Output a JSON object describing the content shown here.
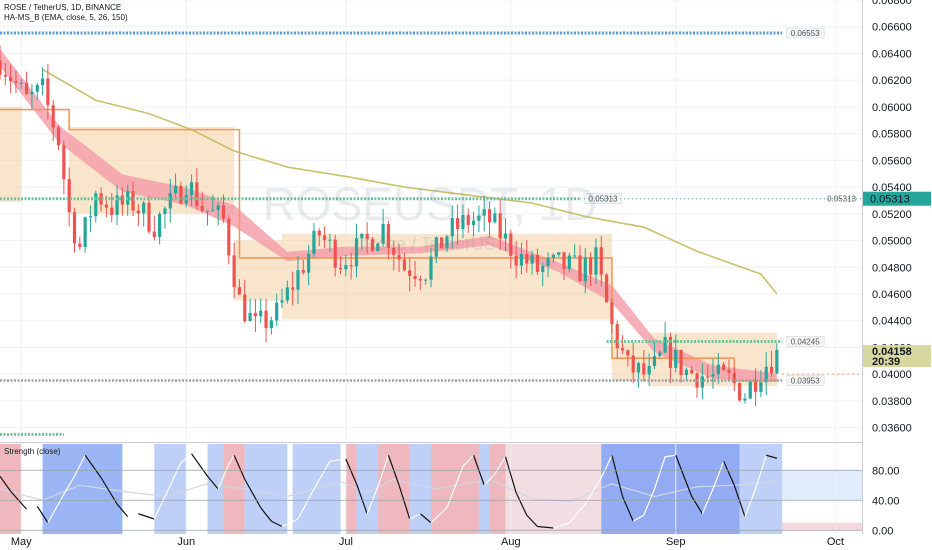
{
  "header": {
    "symbol_line": "ROSE / TetherUS, 1D, BINANCE",
    "indicator_line": "HA-MS_B (EMA, close, 5, 26, 150)",
    "osc_title": "Strength (close)"
  },
  "watermark": {
    "symbol": "ROSEUSDT, 1D",
    "sub": "Rose / TetherUS"
  },
  "chart_data": {
    "type": "candlestick",
    "price_axis": {
      "ylim": [
        0.035,
        0.068
      ],
      "ticks": [
        "0.06800",
        "0.06600",
        "0.06400",
        "0.06200",
        "0.06000",
        "0.05800",
        "0.05600",
        "0.05400",
        "0.05200",
        "0.05000",
        "0.04800",
        "0.04600",
        "0.04400",
        "0.04200",
        "0.04000",
        "0.03800",
        "0.03600"
      ]
    },
    "time_axis": {
      "start": "2022-04-27",
      "end": "2022-10-06",
      "labels": [
        {
          "text": "May",
          "date": "2022-05-01"
        },
        {
          "text": "Jun",
          "date": "2022-06-01"
        },
        {
          "text": "Jul",
          "date": "2022-07-01"
        },
        {
          "text": "Aug",
          "date": "2022-08-01"
        },
        {
          "text": "Sep",
          "date": "2022-09-01"
        },
        {
          "text": "Oct",
          "date": "2022-10-01"
        }
      ]
    },
    "close_anchors": [
      [
        "2022-04-27",
        0.0635
      ],
      [
        "2022-05-02",
        0.0605
      ],
      [
        "2022-05-05",
        0.0612
      ],
      [
        "2022-05-08",
        0.0575
      ],
      [
        "2022-05-10",
        0.052
      ],
      [
        "2022-05-12",
        0.0495
      ],
      [
        "2022-05-15",
        0.0535
      ],
      [
        "2022-05-18",
        0.0525
      ],
      [
        "2022-05-22",
        0.0528
      ],
      [
        "2022-05-26",
        0.0512
      ],
      [
        "2022-05-30",
        0.0532
      ],
      [
        "2022-06-01",
        0.0545
      ],
      [
        "2022-06-04",
        0.0525
      ],
      [
        "2022-06-08",
        0.0515
      ],
      [
        "2022-06-11",
        0.0455
      ],
      [
        "2022-06-14",
        0.0435
      ],
      [
        "2022-06-18",
        0.0445
      ],
      [
        "2022-06-22",
        0.0475
      ],
      [
        "2022-06-26",
        0.0505
      ],
      [
        "2022-06-30",
        0.0485
      ],
      [
        "2022-07-04",
        0.0495
      ],
      [
        "2022-07-08",
        0.051
      ],
      [
        "2022-07-12",
        0.048
      ],
      [
        "2022-07-16",
        0.0478
      ],
      [
        "2022-07-20",
        0.0505
      ],
      [
        "2022-07-24",
        0.0515
      ],
      [
        "2022-07-28",
        0.0515
      ],
      [
        "2022-08-02",
        0.049
      ],
      [
        "2022-08-06",
        0.0478
      ],
      [
        "2022-08-10",
        0.0482
      ],
      [
        "2022-08-14",
        0.0478
      ],
      [
        "2022-08-17",
        0.0485
      ],
      [
        "2022-08-20",
        0.0435
      ],
      [
        "2022-08-23",
        0.0405
      ],
      [
        "2022-08-27",
        0.0398
      ],
      [
        "2022-08-30",
        0.0418
      ],
      [
        "2022-09-03",
        0.0402
      ],
      [
        "2022-09-07",
        0.0398
      ],
      [
        "2022-09-11",
        0.0396
      ],
      [
        "2022-09-14",
        0.0385
      ],
      [
        "2022-09-17",
        0.0404
      ],
      [
        "2022-09-20",
        0.0415
      ]
    ],
    "ema_fast_anchors": [
      [
        "2022-04-27",
        0.0642
      ],
      [
        "2022-05-08",
        0.0585
      ],
      [
        "2022-05-20",
        0.0548
      ],
      [
        "2022-06-01",
        0.0538
      ],
      [
        "2022-06-10",
        0.0525
      ],
      [
        "2022-06-20",
        0.049
      ],
      [
        "2022-07-01",
        0.0494
      ],
      [
        "2022-07-15",
        0.0494
      ],
      [
        "2022-07-28",
        0.0502
      ],
      [
        "2022-08-10",
        0.0482
      ],
      [
        "2022-08-20",
        0.0465
      ],
      [
        "2022-08-28",
        0.0425
      ],
      [
        "2022-09-08",
        0.0405
      ],
      [
        "2022-09-20",
        0.0399
      ]
    ],
    "ema_slow_anchors": [
      [
        "2022-04-27",
        0.0632
      ],
      [
        "2022-05-08",
        0.0575
      ],
      [
        "2022-05-20",
        0.0538
      ],
      [
        "2022-06-01",
        0.0528
      ],
      [
        "2022-06-10",
        0.0512
      ],
      [
        "2022-06-20",
        0.0486
      ],
      [
        "2022-07-01",
        0.049
      ],
      [
        "2022-07-15",
        0.0492
      ],
      [
        "2022-07-28",
        0.0498
      ],
      [
        "2022-08-10",
        0.0478
      ],
      [
        "2022-08-20",
        0.0455
      ],
      [
        "2022-08-28",
        0.0418
      ],
      [
        "2022-09-08",
        0.0398
      ],
      [
        "2022-09-20",
        0.0396
      ]
    ],
    "upper_steps": [
      [
        "2022-05-05",
        0.0628
      ],
      [
        "2022-05-15",
        0.0605
      ],
      [
        "2022-05-25",
        0.0595
      ],
      [
        "2022-06-02",
        0.0583
      ],
      [
        "2022-06-10",
        0.0567
      ],
      [
        "2022-06-20",
        0.0555
      ],
      [
        "2022-07-01",
        0.0548
      ],
      [
        "2022-07-12",
        0.054
      ],
      [
        "2022-07-22",
        0.0535
      ],
      [
        "2022-08-05",
        0.0528
      ],
      [
        "2022-08-15",
        0.0518
      ],
      [
        "2022-08-26",
        0.051
      ],
      [
        "2022-09-05",
        0.0492
      ],
      [
        "2022-09-12",
        0.0482
      ],
      [
        "2022-09-17",
        0.0475
      ],
      [
        "2022-09-20",
        0.046
      ]
    ],
    "range_steps": [
      [
        "2022-04-27",
        0.0598
      ],
      [
        "2022-05-10",
        0.0583
      ],
      [
        "2022-06-11",
        0.0487
      ],
      [
        "2022-08-20",
        0.0412
      ],
      [
        "2022-08-28",
        0.0412
      ],
      [
        "2022-09-12",
        0.0395
      ],
      [
        "2022-09-20",
        0.0395
      ]
    ],
    "boxes": [
      {
        "from": "2022-04-27",
        "to": "2022-05-01",
        "top": 0.06,
        "bottom": 0.0529
      },
      {
        "from": "2022-05-10",
        "to": "2022-06-10",
        "top": 0.0585,
        "bottom": 0.052
      },
      {
        "from": "2022-06-10",
        "to": "2022-06-19",
        "top": 0.05,
        "bottom": 0.0455
      },
      {
        "from": "2022-06-19",
        "to": "2022-08-20",
        "top": 0.0505,
        "bottom": 0.0441
      },
      {
        "from": "2022-08-20",
        "to": "2022-08-27",
        "top": 0.0424,
        "bottom": 0.0395
      },
      {
        "from": "2022-08-27",
        "to": "2022-09-20",
        "top": 0.0431,
        "bottom": 0.0391
      }
    ],
    "levels": [
      {
        "price": 0.06553,
        "label": "0.06553",
        "style": "blue-dotted",
        "from": "2022-04-27",
        "to": "2022-09-21"
      },
      {
        "price": 0.05313,
        "label": "0.05313",
        "style": "green-dotted",
        "from": "2022-04-27",
        "to": "2022-08-14"
      },
      {
        "price": 0.04245,
        "label": "0.04245",
        "style": "green-dotted",
        "from": "2022-08-19",
        "to": "2022-09-21"
      },
      {
        "price": 0.03953,
        "label": "0.03953",
        "style": "gray-dotted",
        "from": "2022-04-27",
        "to": "2022-09-21"
      },
      {
        "price": 0.0355,
        "label": "",
        "style": "green-dotted",
        "from": "2022-04-27",
        "to": "2022-05-09"
      }
    ],
    "last_price_tag": {
      "price": 0.05313,
      "label": "0.05313"
    },
    "current_price": {
      "price": 0.04158,
      "label": "0.04158",
      "countdown": "20:39"
    },
    "oscillator": {
      "title": "Strength (close)",
      "ylim": [
        -5,
        115
      ],
      "ticks": [
        "80.00",
        "40.00",
        "0.00"
      ],
      "tick_values": [
        80,
        40,
        0
      ],
      "bands": [
        {
          "from": "2022-04-27",
          "to": "2022-05-01",
          "color": "#e8a0a8"
        },
        {
          "from": "2022-05-05",
          "to": "2022-05-20",
          "color": "#7b9cf0"
        },
        {
          "from": "2022-05-26",
          "to": "2022-06-01",
          "color": "#a8bff5"
        },
        {
          "from": "2022-06-05",
          "to": "2022-06-08",
          "color": "#a8bff5"
        },
        {
          "from": "2022-06-08",
          "to": "2022-06-12",
          "color": "#e8a0a8"
        },
        {
          "from": "2022-06-12",
          "to": "2022-06-20",
          "color": "#a8bff5"
        },
        {
          "from": "2022-06-21",
          "to": "2022-06-30",
          "color": "#a8bff5"
        },
        {
          "from": "2022-07-01",
          "to": "2022-07-03",
          "color": "#e8a0a8"
        },
        {
          "from": "2022-07-03",
          "to": "2022-07-07",
          "color": "#a8bff5"
        },
        {
          "from": "2022-07-07",
          "to": "2022-07-13",
          "color": "#e8a0a8"
        },
        {
          "from": "2022-07-13",
          "to": "2022-07-17",
          "color": "#a8bff5"
        },
        {
          "from": "2022-07-17",
          "to": "2022-07-26",
          "color": "#e8a0a8"
        },
        {
          "from": "2022-07-26",
          "to": "2022-07-28",
          "color": "#a8bff5"
        },
        {
          "from": "2022-07-28",
          "to": "2022-07-31",
          "color": "#e8a0a8"
        },
        {
          "from": "2022-07-31",
          "to": "2022-08-18",
          "color": "#ecd2d8"
        },
        {
          "from": "2022-08-18",
          "to": "2022-09-13",
          "color": "#6f8fee"
        },
        {
          "from": "2022-09-13",
          "to": "2022-09-21",
          "color": "#a8bff5"
        }
      ],
      "strength_anchors": [
        [
          "2022-04-27",
          72
        ],
        [
          "2022-04-29",
          52
        ],
        [
          "2022-05-02",
          28
        ],
        [
          "2022-05-04",
          32
        ],
        [
          "2022-05-06",
          10
        ],
        [
          "2022-05-09",
          48
        ],
        [
          "2022-05-11",
          72
        ],
        [
          "2022-05-13",
          100
        ],
        [
          "2022-05-16",
          70
        ],
        [
          "2022-05-19",
          35
        ],
        [
          "2022-05-21",
          18
        ],
        [
          "2022-05-23",
          22
        ],
        [
          "2022-05-26",
          15
        ],
        [
          "2022-05-28",
          45
        ],
        [
          "2022-05-31",
          90
        ],
        [
          "2022-06-02",
          102
        ],
        [
          "2022-06-05",
          72
        ],
        [
          "2022-06-07",
          55
        ],
        [
          "2022-06-09",
          88
        ],
        [
          "2022-06-10",
          100
        ],
        [
          "2022-06-12",
          68
        ],
        [
          "2022-06-15",
          30
        ],
        [
          "2022-06-17",
          12
        ],
        [
          "2022-06-19",
          5
        ],
        [
          "2022-06-22",
          15
        ],
        [
          "2022-06-25",
          55
        ],
        [
          "2022-06-28",
          92
        ],
        [
          "2022-07-01",
          95
        ],
        [
          "2022-07-03",
          62
        ],
        [
          "2022-07-05",
          22
        ],
        [
          "2022-07-07",
          58
        ],
        [
          "2022-07-09",
          100
        ],
        [
          "2022-07-11",
          60
        ],
        [
          "2022-07-13",
          15
        ],
        [
          "2022-07-15",
          22
        ],
        [
          "2022-07-17",
          10
        ],
        [
          "2022-07-20",
          30
        ],
        [
          "2022-07-23",
          85
        ],
        [
          "2022-07-25",
          100
        ],
        [
          "2022-07-27",
          60
        ],
        [
          "2022-07-29",
          75
        ],
        [
          "2022-07-31",
          98
        ],
        [
          "2022-08-02",
          50
        ],
        [
          "2022-08-04",
          20
        ],
        [
          "2022-08-06",
          5
        ],
        [
          "2022-08-09",
          3
        ],
        [
          "2022-08-12",
          10
        ],
        [
          "2022-08-15",
          35
        ],
        [
          "2022-08-18",
          70
        ],
        [
          "2022-08-20",
          100
        ],
        [
          "2022-08-22",
          45
        ],
        [
          "2022-08-24",
          12
        ],
        [
          "2022-08-26",
          20
        ],
        [
          "2022-08-28",
          55
        ],
        [
          "2022-08-30",
          98
        ],
        [
          "2022-09-01",
          100
        ],
        [
          "2022-09-04",
          45
        ],
        [
          "2022-09-06",
          22
        ],
        [
          "2022-09-08",
          55
        ],
        [
          "2022-09-10",
          92
        ],
        [
          "2022-09-12",
          60
        ],
        [
          "2022-09-14",
          18
        ],
        [
          "2022-09-16",
          55
        ],
        [
          "2022-09-18",
          100
        ],
        [
          "2022-09-20",
          96
        ]
      ],
      "signal_anchors": [
        [
          "2022-04-27",
          55
        ],
        [
          "2022-05-05",
          40
        ],
        [
          "2022-05-12",
          60
        ],
        [
          "2022-05-20",
          52
        ],
        [
          "2022-05-28",
          45
        ],
        [
          "2022-06-05",
          62
        ],
        [
          "2022-06-12",
          55
        ],
        [
          "2022-06-20",
          45
        ],
        [
          "2022-06-30",
          65
        ],
        [
          "2022-07-05",
          50
        ],
        [
          "2022-07-10",
          68
        ],
        [
          "2022-07-18",
          55
        ],
        [
          "2022-07-28",
          68
        ],
        [
          "2022-08-05",
          42
        ],
        [
          "2022-08-12",
          38
        ],
        [
          "2022-08-20",
          62
        ],
        [
          "2022-08-28",
          45
        ],
        [
          "2022-09-05",
          58
        ],
        [
          "2022-09-12",
          60
        ],
        [
          "2022-09-20",
          66
        ]
      ]
    }
  },
  "colors": {
    "bull": "#26a69a",
    "bear": "#ef5350",
    "upper_line": "#c8c26a",
    "range_line": "#f3985a",
    "box_fill": "#f3cfa0",
    "ema_band": "#f4a0ac",
    "blue_dots": "#5b9bd5",
    "green_dots": "#6cc49e",
    "tag_green": "#26a69a",
    "current_tag": "#d6d8a0",
    "grid": "#eef0f3",
    "osc_line": "#141414"
  }
}
